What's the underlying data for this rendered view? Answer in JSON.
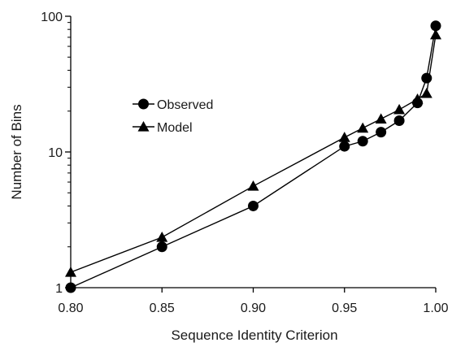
{
  "chart_data": {
    "type": "line",
    "title": "",
    "xlabel": "Sequence Identity Criterion",
    "ylabel": "Number of Bins",
    "xlim": [
      0.8,
      1.0
    ],
    "ylim": [
      1,
      100
    ],
    "yscale": "log",
    "grid": false,
    "legend": "upper-left, inside plot",
    "x_ticks": [
      "0.80",
      "0.85",
      "0.90",
      "0.95",
      "1.00"
    ],
    "y_ticks": [
      "1",
      "10",
      "100"
    ],
    "series": [
      {
        "name": "Observed",
        "marker": "circle",
        "color": "#000000",
        "points": [
          [
            0.8,
            1.0
          ],
          [
            0.85,
            2.0
          ],
          [
            0.9,
            4.0
          ],
          [
            0.95,
            11.0
          ],
          [
            0.96,
            12.0
          ],
          [
            0.97,
            14.0
          ],
          [
            0.98,
            17.0
          ],
          [
            0.99,
            23.0
          ],
          [
            0.995,
            35.0
          ],
          [
            1.0,
            85.0
          ]
        ]
      },
      {
        "name": "Model",
        "marker": "triangle",
        "color": "#000000",
        "points": [
          [
            0.8,
            1.3
          ],
          [
            0.85,
            2.35
          ],
          [
            0.9,
            5.6
          ],
          [
            0.95,
            12.8
          ],
          [
            0.96,
            15.0
          ],
          [
            0.97,
            17.5
          ],
          [
            0.98,
            20.5
          ],
          [
            0.99,
            24.5
          ],
          [
            0.995,
            27.0
          ],
          [
            1.0,
            73.0
          ]
        ]
      }
    ]
  }
}
